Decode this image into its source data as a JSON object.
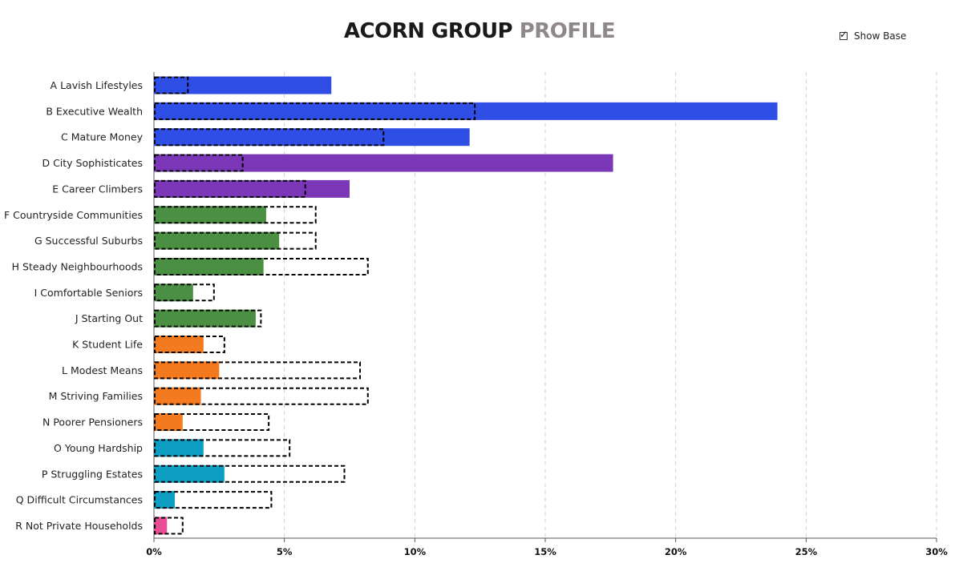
{
  "title": {
    "part1": "ACORN GROUP",
    "part2": "PROFILE"
  },
  "show_base": {
    "label": "Show Base",
    "checked": true
  },
  "chart_data": {
    "type": "bar",
    "orientation": "horizontal",
    "xlim": [
      0,
      30
    ],
    "x_ticks": [
      "0%",
      "5%",
      "10%",
      "15%",
      "20%",
      "25%",
      "30%"
    ],
    "grid": "vertical dashed",
    "categories": [
      "A Lavish Lifestyles",
      "B Executive Wealth",
      "C Mature Money",
      "D City Sophisticates",
      "E Career Climbers",
      "F Countryside Communities",
      "G Successful Suburbs",
      "H Steady Neighbourhoods",
      "I Comfortable Seniors",
      "J Starting Out",
      "K Student Life",
      "L Modest Means",
      "M Striving Families",
      "N Poorer Pensioners",
      "O Young Hardship",
      "P Struggling Estates",
      "Q Difficult Circumstances",
      "R Not Private Households"
    ],
    "series": [
      {
        "values": [
          6.8,
          23.9,
          12.1,
          17.6,
          7.5,
          4.3,
          4.8,
          4.2,
          1.5,
          3.9,
          1.9,
          2.5,
          1.8,
          1.1,
          1.9,
          2.7,
          0.8,
          0.5
        ],
        "colors": [
          "#2f4ee6",
          "#2f4ee6",
          "#2f4ee6",
          "#7b37b8",
          "#7b37b8",
          "#4a8f42",
          "#4a8f42",
          "#4a8f42",
          "#4a8f42",
          "#4a8f42",
          "#f47a20",
          "#f47a20",
          "#f47a20",
          "#f47a20",
          "#0e9ec4",
          "#0e9ec4",
          "#0e9ec4",
          "#e64d95"
        ]
      },
      {
        "style": "dashed outline",
        "values": [
          1.3,
          12.3,
          8.8,
          3.4,
          5.8,
          6.2,
          6.2,
          8.2,
          2.3,
          4.1,
          2.7,
          7.9,
          8.2,
          4.4,
          5.2,
          7.3,
          4.5,
          1.1
        ]
      }
    ]
  }
}
